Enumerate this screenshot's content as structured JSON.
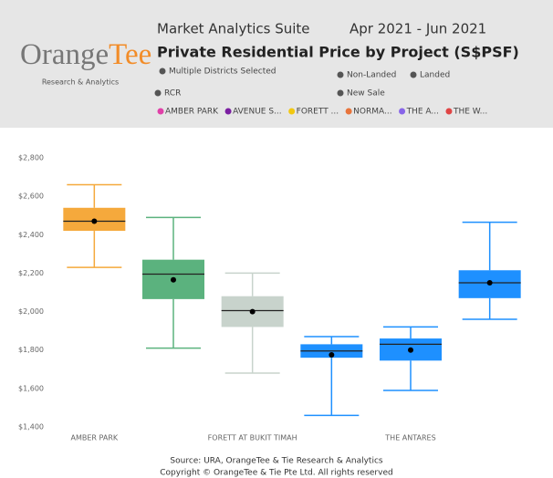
{
  "header": {
    "logo_a": "Orange",
    "logo_b": "Tee",
    "logo_sub": "Research & Analytics",
    "suite": "Market Analytics Suite",
    "period": "Apr 2021 - Jun 2021",
    "filters": [
      "Multiple Districts Selected",
      "Non-Landed",
      "Landed",
      "RCR",
      "New Sale"
    ]
  },
  "chart_data": {
    "type": "box",
    "title": "Private Residential Price by Project (S$PSF)",
    "legend": [
      {
        "name": "AMBER PARK",
        "color": "#e040a8"
      },
      {
        "name": "AVENUE S...",
        "color": "#7b1fa2"
      },
      {
        "name": "FORETT ...",
        "color": "#f2c811"
      },
      {
        "name": "NORMA...",
        "color": "#e8743b"
      },
      {
        "name": "THE A...",
        "color": "#8764e8"
      },
      {
        "name": "THE W...",
        "color": "#e04545"
      }
    ],
    "categories": [
      "AMBER PARK",
      null,
      "FORETT AT BUKIT TIMAH",
      null,
      "THE ANTARES",
      null
    ],
    "boxes": [
      {
        "color": "#f5a93c",
        "whisker_low": 2230,
        "q1": 2420,
        "median": 2470,
        "q3": 2540,
        "whisker_high": 2660,
        "mean": 2470
      },
      {
        "color": "#5bb27e",
        "whisker_low": 1810,
        "q1": 2065,
        "median": 2195,
        "q3": 2270,
        "whisker_high": 2490,
        "mean": 2165
      },
      {
        "color": "#c8d3cc",
        "whisker_low": 1680,
        "q1": 1920,
        "median": 2005,
        "q3": 2080,
        "whisker_high": 2200,
        "mean": 2000
      },
      {
        "color": "#1e90ff",
        "whisker_low": 1460,
        "q1": 1760,
        "median": 1795,
        "q3": 1830,
        "whisker_high": 1870,
        "mean": 1775
      },
      {
        "color": "#1e90ff",
        "whisker_low": 1590,
        "q1": 1745,
        "median": 1830,
        "q3": 1860,
        "whisker_high": 1920,
        "mean": 1800
      },
      {
        "color": "#1e90ff",
        "whisker_low": 1960,
        "q1": 2070,
        "median": 2150,
        "q3": 2215,
        "whisker_high": 2465,
        "mean": 2150
      }
    ],
    "ylim": [
      1400,
      2800
    ],
    "yticks": [
      {
        "value": 1400,
        "label": "$1,400"
      },
      {
        "value": 1600,
        "label": "$1,600"
      },
      {
        "value": 1800,
        "label": "$1,800"
      },
      {
        "value": 2000,
        "label": "$2,000"
      },
      {
        "value": 2200,
        "label": "$2,200"
      },
      {
        "value": 2400,
        "label": "$2,400"
      },
      {
        "value": 2600,
        "label": "$2,600"
      },
      {
        "value": 2800,
        "label": "$2,800"
      }
    ]
  },
  "footer": {
    "source": "Source: URA, OrangeTee & Tie Research & Analytics",
    "copyright": "Copyright © OrangeTee & Tie Pte Ltd. All rights reserved"
  }
}
